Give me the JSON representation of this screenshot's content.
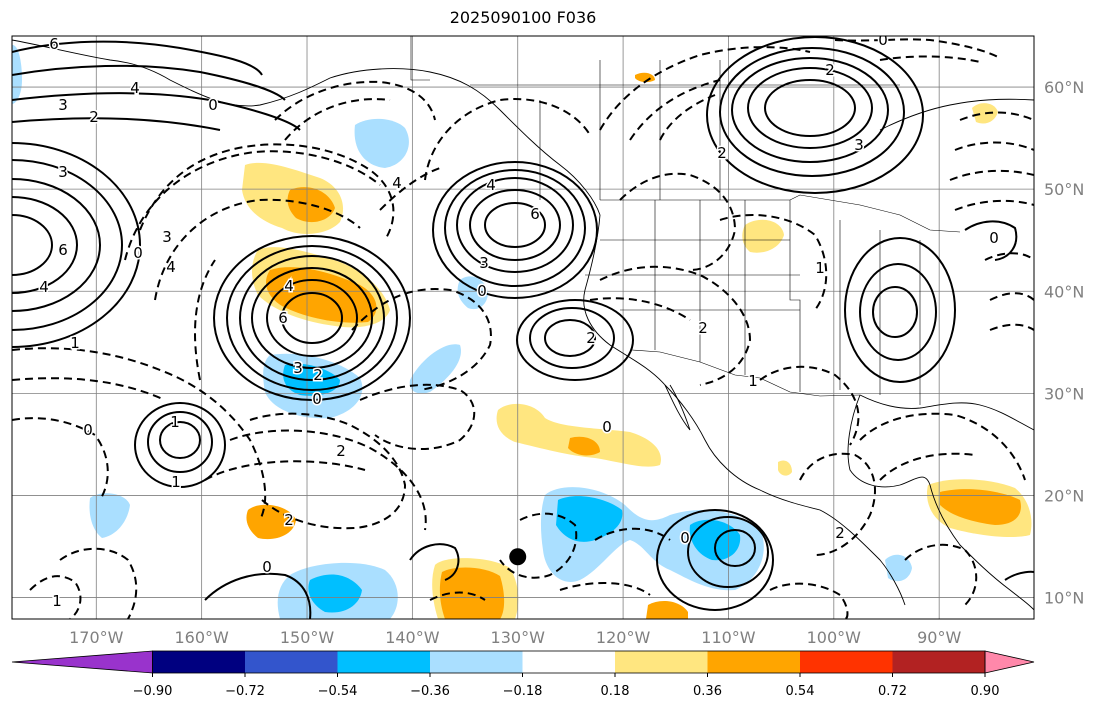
{
  "title": "2025090100 F036",
  "map": {
    "projection": "plate-carree",
    "lon_range": [
      -178,
      -81
    ],
    "lat_range": [
      7.9,
      65
    ],
    "lat_labels": [
      "60°N",
      "50°N",
      "40°N",
      "30°N",
      "20°N",
      "10°N"
    ],
    "lon_labels": [
      "170°W",
      "160°W",
      "150°W",
      "140°W",
      "130°W",
      "120°W",
      "110°W",
      "100°W",
      "90°W"
    ],
    "grid_color": "#808080",
    "marker": {
      "lon": -130,
      "lat": 14,
      "color": "#000000"
    }
  },
  "colorbar": {
    "tick_labels": [
      "−0.90",
      "−0.72",
      "−0.54",
      "−0.36",
      "−0.18",
      "0.18",
      "0.36",
      "0.54",
      "0.72",
      "0.90"
    ],
    "colors": [
      "#9933cc",
      "#000080",
      "#3355cc",
      "#00bfff",
      "#aadfff",
      "#ffffff",
      "#ffe680",
      "#ffa500",
      "#ff3300",
      "#b22222",
      "#ff88aa"
    ],
    "extend": "both"
  },
  "contour_labels": [
    {
      "text": "6"
    },
    {
      "text": "4"
    },
    {
      "text": "3"
    },
    {
      "text": "2"
    },
    {
      "text": "0"
    },
    {
      "text": "3"
    },
    {
      "text": "6"
    },
    {
      "text": "4"
    },
    {
      "text": "1"
    },
    {
      "text": "4"
    },
    {
      "text": "0"
    },
    {
      "text": "3"
    },
    {
      "text": "6"
    },
    {
      "text": "4"
    },
    {
      "text": "3"
    },
    {
      "text": "2"
    },
    {
      "text": "0"
    },
    {
      "text": "2"
    },
    {
      "text": "0"
    },
    {
      "text": "2"
    },
    {
      "text": "1"
    },
    {
      "text": "1"
    },
    {
      "text": "0"
    },
    {
      "text": "6"
    },
    {
      "text": "4"
    },
    {
      "text": "3"
    },
    {
      "text": "2"
    },
    {
      "text": "0"
    },
    {
      "text": "4"
    },
    {
      "text": "3"
    },
    {
      "text": "0"
    },
    {
      "text": "2"
    },
    {
      "text": "2"
    },
    {
      "text": "0"
    },
    {
      "text": "2"
    },
    {
      "text": "1"
    },
    {
      "text": "1"
    },
    {
      "text": "0"
    },
    {
      "text": "0"
    },
    {
      "text": "2"
    },
    {
      "text": "1"
    }
  ]
}
